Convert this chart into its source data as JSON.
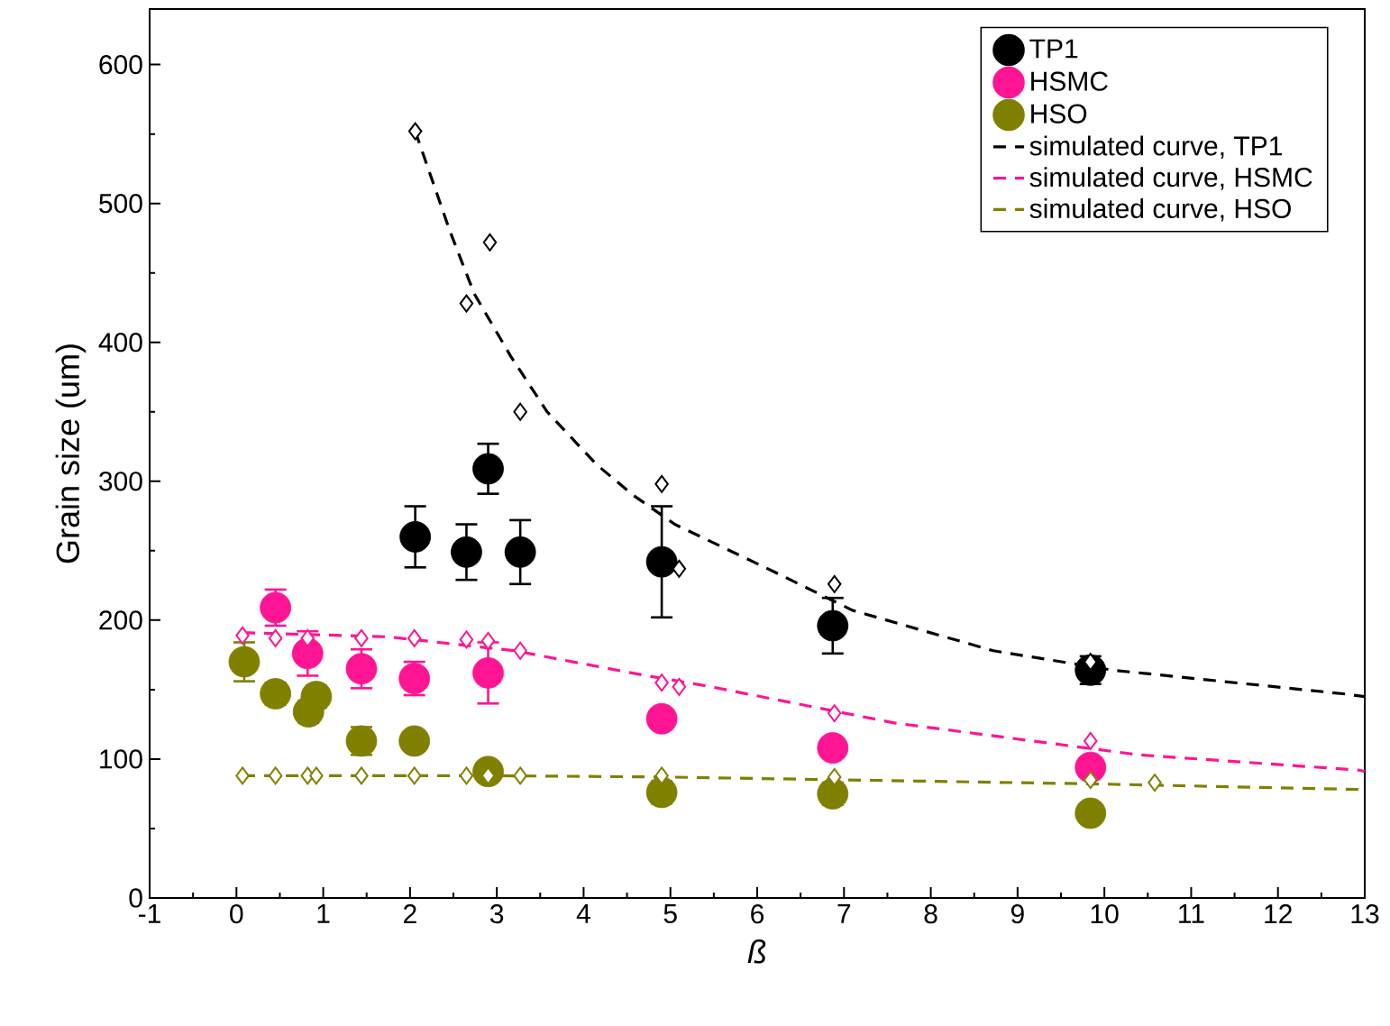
{
  "chart_data": {
    "type": "scatter",
    "xlabel": "ß",
    "ylabel": "Grain size (um)",
    "xlim": [
      -1,
      13
    ],
    "ylim": [
      0,
      640
    ],
    "xticks": [
      -1,
      0,
      1,
      2,
      3,
      4,
      5,
      6,
      7,
      8,
      9,
      10,
      11,
      12,
      13
    ],
    "yticks": [
      0,
      100,
      200,
      300,
      400,
      500,
      600
    ],
    "legend": "top right",
    "series": [
      {
        "name": "TP1",
        "color": "#000000",
        "marker": "circle",
        "x": [
          2.06,
          2.65,
          2.9,
          3.27,
          4.9,
          6.87,
          9.84
        ],
        "values": [
          260,
          249,
          309,
          249,
          242,
          196,
          164
        ],
        "errors": [
          22,
          20,
          18,
          23,
          40,
          20,
          10
        ]
      },
      {
        "name": "HSMC",
        "color": "#ff1493",
        "marker": "circle",
        "x": [
          0.45,
          0.82,
          1.44,
          2.05,
          2.9,
          4.9,
          6.87,
          9.84
        ],
        "values": [
          209,
          176,
          165,
          158,
          162,
          129,
          108,
          94
        ],
        "errors": [
          13,
          16,
          14,
          12,
          22,
          null,
          null,
          null
        ]
      },
      {
        "name": "HSO",
        "color": "#808000",
        "marker": "circle",
        "x": [
          0.09,
          0.45,
          0.83,
          0.92,
          1.44,
          2.05,
          2.9,
          4.9,
          6.87,
          9.84
        ],
        "values": [
          170,
          147,
          134,
          145,
          113,
          113,
          91,
          76,
          75,
          61
        ],
        "errors": [
          14,
          8,
          8,
          8,
          10,
          7,
          7,
          8,
          8,
          7
        ]
      },
      {
        "color": "#000000",
        "marker": "diamond",
        "x": [
          2.06,
          2.65,
          2.92,
          3.27,
          4.9,
          5.1,
          6.89,
          9.84
        ],
        "values": [
          552,
          428,
          472,
          350,
          298,
          237,
          226,
          170
        ]
      },
      {
        "color": "#ff1493",
        "marker": "diamond",
        "x": [
          0.07,
          0.45,
          0.82,
          1.44,
          2.05,
          2.65,
          2.9,
          3.27,
          4.9,
          5.1,
          6.89,
          9.84
        ],
        "values": [
          189,
          187,
          187,
          187,
          187,
          186,
          185,
          178,
          155,
          152,
          133,
          113
        ]
      },
      {
        "color": "#808000",
        "marker": "diamond",
        "x": [
          0.07,
          0.45,
          0.82,
          0.92,
          1.44,
          2.05,
          2.65,
          2.9,
          3.27,
          4.9,
          6.89,
          9.84,
          10.58
        ],
        "values": [
          88,
          88,
          88,
          88,
          88,
          88,
          88,
          88,
          88,
          88,
          87,
          85,
          83
        ]
      },
      {
        "name": "simulated curve, TP1",
        "type": "line",
        "line_style": "dashed",
        "color": "#000000",
        "x": [
          2.06,
          2.46,
          2.74,
          3.16,
          3.58,
          4.15,
          4.57,
          5.05,
          6.19,
          7.1,
          8.72,
          10.1,
          12.75,
          13
        ],
        "values": [
          552,
          480,
          435,
          390,
          350,
          312,
          290,
          269,
          235,
          207,
          178,
          164,
          147,
          145
        ]
      },
      {
        "name": "simulated curve, HSMC",
        "type": "line",
        "line_style": "dashed",
        "color": "#ff1493",
        "x": [
          0.07,
          1.75,
          3.2,
          4.64,
          5.47,
          7.58,
          10.4,
          12.94,
          13
        ],
        "values": [
          191,
          188,
          178,
          161,
          152,
          126,
          103,
          92,
          91
        ]
      },
      {
        "name": "simulated curve, HSO",
        "type": "line",
        "line_style": "dashed",
        "color": "#808000",
        "x": [
          0.07,
          3,
          5,
          7,
          10,
          13
        ],
        "values": [
          88,
          88,
          87,
          85,
          82,
          78
        ]
      }
    ]
  }
}
